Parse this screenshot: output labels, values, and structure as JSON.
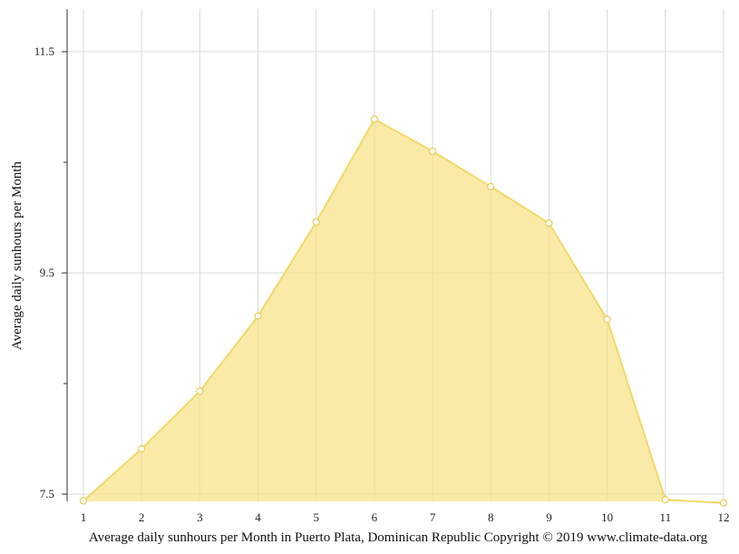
{
  "chart_data": {
    "type": "area",
    "title": "",
    "ylabel": "Average daily sunhours per Month",
    "xlabel": "Average daily sunhours per Month in Puerto Plata, Dominican Republic Copyright © 2019 www.climate-data.org",
    "x": [
      1,
      2,
      3,
      4,
      5,
      6,
      7,
      8,
      9,
      10,
      11,
      12
    ],
    "x_tick_labels": [
      "1",
      "2",
      "3",
      "4",
      "5",
      "6",
      "7",
      "8",
      "9",
      "10",
      "11",
      "12"
    ],
    "y_tick_labels": [
      "11.5",
      "9.5",
      "7.5"
    ],
    "y_ticks": [
      11.5,
      9.5,
      7.5
    ],
    "y_minor_ticks": [
      10.5,
      8.5
    ],
    "xlim": [
      1,
      12
    ],
    "ylim": [
      7.45,
      11.9
    ],
    "grid": true,
    "legend": "none",
    "series": [
      {
        "values": [
          7.44,
          7.91,
          8.43,
          9.11,
          9.96,
          10.89,
          10.6,
          10.28,
          9.95,
          9.08,
          7.45,
          7.42
        ]
      }
    ],
    "colors": {
      "fill": "#f7e38a",
      "line": "#f2d96a",
      "marker_stroke": "#e8cc55",
      "grid": "#d8d8d8",
      "axis": "#333333"
    }
  }
}
